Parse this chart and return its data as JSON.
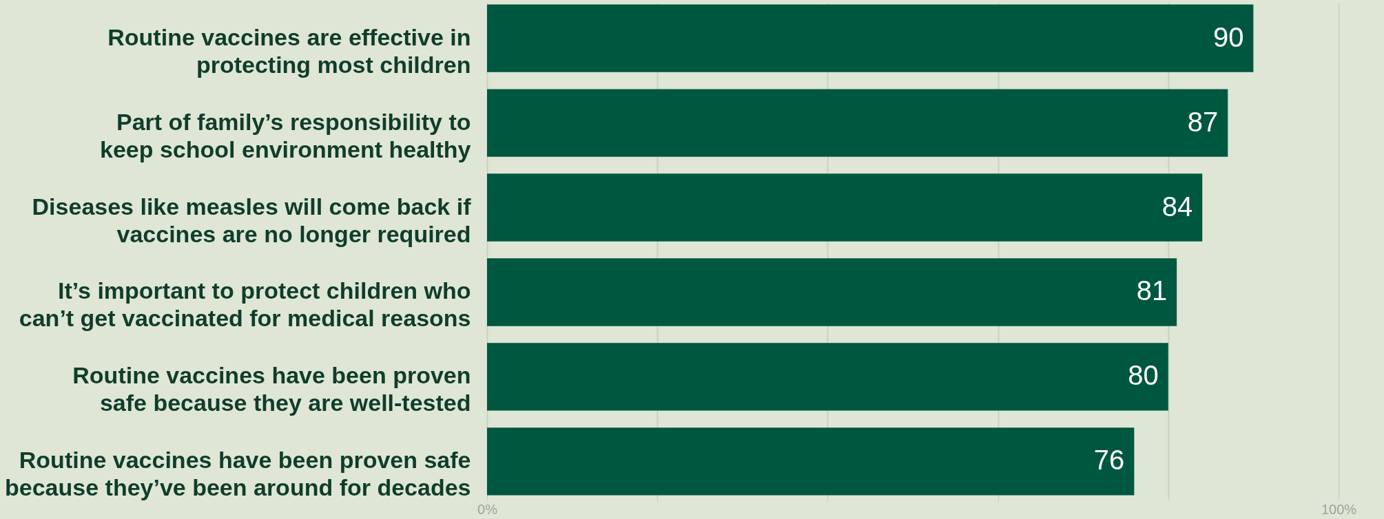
{
  "chart_data": {
    "type": "bar",
    "orientation": "horizontal",
    "categories": [
      "Routine vaccines are effective in protecting most children",
      "Part of family’s responsibility to keep school environment healthy",
      "Diseases like measles will come back if vaccines are no longer required",
      "It’s important to protect children who can’t get vaccinated for medical reasons",
      "Routine vaccines have been proven safe because they are well-tested",
      "Routine vaccines have been proven safe because they’ve been around for decades"
    ],
    "values": [
      90,
      87,
      84,
      81,
      80,
      76
    ],
    "color": "#00573f",
    "xlim": [
      0,
      100
    ],
    "xticks": [
      {
        "value": 0,
        "label": "0%"
      },
      {
        "value": 20,
        "label": null
      },
      {
        "value": 40,
        "label": null
      },
      {
        "value": 60,
        "label": null
      },
      {
        "value": 80,
        "label": null
      },
      {
        "value": 100,
        "label": "100%"
      }
    ],
    "grid": "x",
    "data_labels": true
  }
}
